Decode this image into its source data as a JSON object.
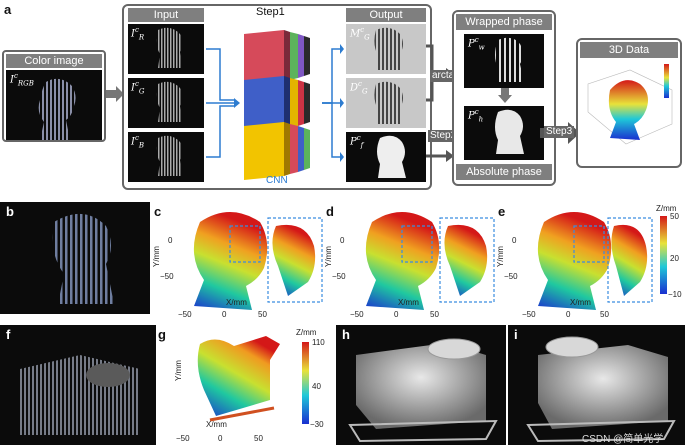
{
  "panel_letters": {
    "a": "a",
    "b": "b",
    "c": "c",
    "d": "d",
    "e": "e",
    "f": "f",
    "g": "g",
    "h": "h",
    "i": "i"
  },
  "color_image": {
    "title": "Color image",
    "label_main": "I",
    "label_sup": "c",
    "label_sub": "RGB"
  },
  "input": {
    "title": "Input",
    "items": [
      {
        "main": "I",
        "sup": "c",
        "sub": "R"
      },
      {
        "main": "I",
        "sup": "c",
        "sub": "G"
      },
      {
        "main": "I",
        "sup": "c",
        "sub": "B"
      }
    ]
  },
  "step1": {
    "title": "Step1",
    "cnn": "CNN"
  },
  "output": {
    "title": "Output",
    "items": [
      {
        "main": "M",
        "sup": "c",
        "sub": "G"
      },
      {
        "main": "D",
        "sup": "c",
        "sub": "G"
      },
      {
        "main": "P",
        "sup": "c",
        "sub": "f"
      }
    ]
  },
  "wrapped": {
    "title": "Wrapped phase",
    "main": "P",
    "sup": "c",
    "sub": "w"
  },
  "absolute": {
    "title": "Absolute phase",
    "main": "P",
    "sup": "c",
    "sub": "h"
  },
  "arrows": {
    "arctan": "arctan",
    "step2": "Step2",
    "step3": "Step3"
  },
  "data3d": {
    "title": "3D Data"
  },
  "colorbar_ce": {
    "unit": "Z/mm",
    "ticks": [
      "50",
      "20",
      "−10"
    ]
  },
  "colorbar_g": {
    "unit": "Z/mm",
    "ticks": [
      "110",
      "40",
      "−30"
    ]
  },
  "axis_y_mm": "Y/mm",
  "axis_x_mm": "X/mm",
  "ticks_c": {
    "y": [
      "0",
      "−50"
    ],
    "x": [
      "−50",
      "0",
      "50"
    ]
  },
  "ticks_g": {
    "x": [
      "−50",
      "0",
      "50"
    ]
  },
  "watermark": "CSDN @简单光学",
  "colors": {
    "accent_blue": "#2d7cd0",
    "box_gray": "#7f7f7f",
    "arrow_gray": "#555555"
  }
}
